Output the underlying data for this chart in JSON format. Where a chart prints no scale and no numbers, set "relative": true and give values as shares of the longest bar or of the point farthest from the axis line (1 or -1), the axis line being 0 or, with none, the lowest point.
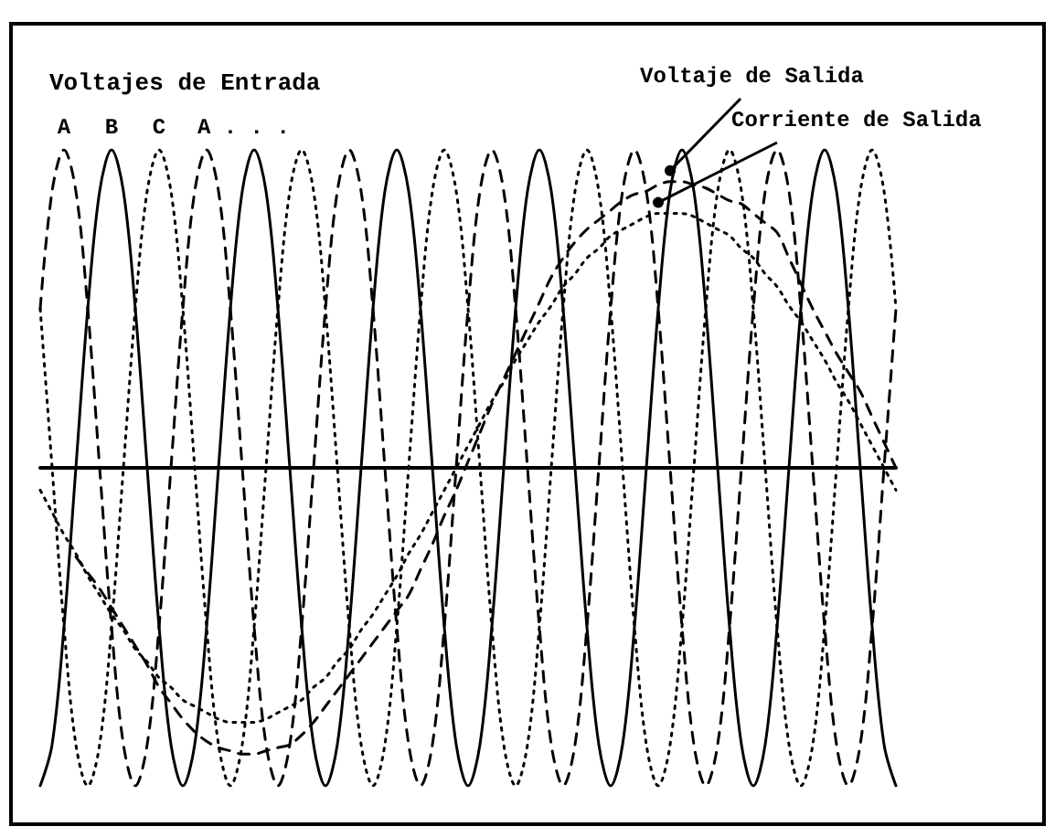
{
  "chart_data": {
    "type": "line",
    "relative": true,
    "title": "Voltajes de Entrada",
    "annotations": [
      "A . . ."
    ],
    "categories": [
      null,
      null,
      null,
      null,
      null,
      null,
      null,
      null,
      null,
      null,
      null,
      null,
      null,
      null,
      null,
      null,
      null,
      null,
      null,
      null,
      null,
      null,
      null,
      null,
      null,
      null,
      null,
      null,
      null,
      null,
      null,
      null,
      null,
      null,
      null,
      null,
      null,
      null,
      null,
      null,
      null,
      null,
      null,
      null,
      null,
      null,
      null,
      null,
      null,
      null,
      null,
      null,
      null,
      null,
      null,
      null,
      null,
      null,
      null,
      null,
      null,
      null,
      null,
      null,
      null,
      null,
      null,
      null,
      null,
      null,
      null,
      null,
      null
    ],
    "series": [
      {
        "name": "A",
        "color": "#000000",
        "line_style": "dashed",
        "values": [
          0.5,
          0.87,
          1,
          0.87,
          0.5,
          0,
          -0.5,
          -0.87,
          -1,
          -0.87,
          -0.5,
          0,
          0.5,
          0.87,
          1,
          0.87,
          0.5,
          0,
          -0.5,
          -0.87,
          -1,
          -0.87,
          -0.5,
          0,
          0.5,
          0.87,
          1,
          0.87,
          0.5,
          0,
          -0.5,
          -0.87,
          -1,
          -0.87,
          -0.5,
          0,
          0.5,
          0.87,
          1,
          0.87,
          0.5,
          0,
          -0.5,
          -0.87,
          -1,
          -0.87,
          -0.5,
          0,
          0.5,
          0.87,
          1,
          0.87,
          0.5,
          0,
          -0.5,
          -0.87,
          -1,
          -0.87,
          -0.5,
          0,
          0.5,
          0.87,
          1,
          0.87,
          0.5,
          0,
          -0.5,
          -0.87,
          -1,
          -0.87,
          -0.5,
          0,
          0.5
        ]
      },
      {
        "name": "B",
        "color": "#000000",
        "line_style": "solid",
        "values": [
          -1,
          -0.87,
          -0.5,
          0,
          0.5,
          0.87,
          1,
          0.87,
          0.5,
          0,
          -0.5,
          -0.87,
          -1,
          -0.87,
          -0.5,
          0,
          0.5,
          0.87,
          1,
          0.87,
          0.5,
          0,
          -0.5,
          -0.87,
          -1,
          -0.87,
          -0.5,
          0,
          0.5,
          0.87,
          1,
          0.87,
          0.5,
          0,
          -0.5,
          -0.87,
          -1,
          -0.87,
          -0.5,
          0,
          0.5,
          0.87,
          1,
          0.87,
          0.5,
          0,
          -0.5,
          -0.87,
          -1,
          -0.87,
          -0.5,
          0,
          0.5,
          0.87,
          1,
          0.87,
          0.5,
          0,
          -0.5,
          -0.87,
          -1,
          -0.87,
          -0.5,
          0,
          0.5,
          0.87,
          1,
          0.87,
          0.5,
          0,
          -0.5,
          -0.87,
          -1
        ]
      },
      {
        "name": "C",
        "color": "#000000",
        "line_style": "dotted",
        "values": [
          0.5,
          0,
          -0.5,
          -0.87,
          -1,
          -0.87,
          -0.5,
          0,
          0.5,
          0.87,
          1,
          0.87,
          0.5,
          0,
          -0.5,
          -0.87,
          -1,
          -0.87,
          -0.5,
          0,
          0.5,
          0.87,
          1,
          0.87,
          0.5,
          0,
          -0.5,
          -0.87,
          -1,
          -0.87,
          -0.5,
          0,
          0.5,
          0.87,
          1,
          0.87,
          0.5,
          0,
          -0.5,
          -0.87,
          -1,
          -0.87,
          -0.5,
          0,
          0.5,
          0.87,
          1,
          0.87,
          0.5,
          0,
          -0.5,
          -0.87,
          -1,
          -0.87,
          -0.5,
          0,
          0.5,
          0.87,
          1,
          0.87,
          0.5,
          0,
          -0.5,
          -0.87,
          -1,
          -0.87,
          -0.5,
          0,
          0.5,
          0.87,
          1,
          0.87,
          0.5
        ]
      },
      {
        "name": "Voltaje de Salida",
        "color": "#000000",
        "line_style": "dashed",
        "values": [
          null,
          null,
          null,
          -0.28,
          -0.33,
          -0.38,
          -0.44,
          -0.5,
          -0.56,
          -0.62,
          -0.69,
          -0.74,
          -0.79,
          -0.83,
          -0.86,
          -0.88,
          -0.89,
          -0.9,
          -0.9,
          -0.89,
          -0.88,
          -0.87,
          -0.84,
          -0.8,
          -0.75,
          -0.7,
          -0.65,
          -0.6,
          -0.55,
          -0.5,
          -0.45,
          -0.4,
          -0.32,
          -0.24,
          -0.15,
          -0.07,
          0.02,
          0.11,
          0.2,
          0.28,
          0.36,
          0.44,
          0.52,
          0.6,
          0.66,
          0.71,
          0.75,
          0.78,
          0.81,
          0.84,
          0.86,
          0.87,
          0.89,
          0.9,
          0.9,
          0.89,
          0.88,
          0.86,
          0.84,
          0.83,
          0.8,
          0.77,
          0.74,
          0.66,
          0.58,
          0.5,
          0.43,
          0.36,
          0.3,
          0.24,
          0.16,
          0.08,
          0
        ]
      },
      {
        "name": "Corriente de Salida",
        "color": "#000000",
        "line_style": "dotted",
        "values": [
          -0.07,
          -0.14,
          -0.21,
          -0.27,
          -0.34,
          -0.4,
          -0.46,
          -0.51,
          -0.57,
          -0.61,
          -0.66,
          -0.69,
          -0.73,
          -0.75,
          -0.77,
          -0.79,
          -0.8,
          -0.8,
          -0.8,
          -0.79,
          -0.77,
          -0.75,
          -0.73,
          -0.69,
          -0.66,
          -0.61,
          -0.57,
          -0.51,
          -0.46,
          -0.4,
          -0.34,
          -0.27,
          -0.21,
          -0.14,
          -0.07,
          0,
          0.07,
          0.14,
          0.21,
          0.27,
          0.34,
          0.4,
          0.46,
          0.51,
          0.57,
          0.61,
          0.66,
          0.69,
          0.73,
          0.75,
          0.77,
          0.79,
          0.8,
          0.8,
          0.8,
          0.79,
          0.77,
          0.75,
          0.73,
          0.69,
          0.66,
          0.61,
          0.57,
          0.51,
          0.46,
          0.4,
          0.34,
          0.27,
          0.21,
          0.14,
          0.07,
          0,
          -0.07
        ]
      }
    ],
    "legend": false,
    "grid": false
  }
}
